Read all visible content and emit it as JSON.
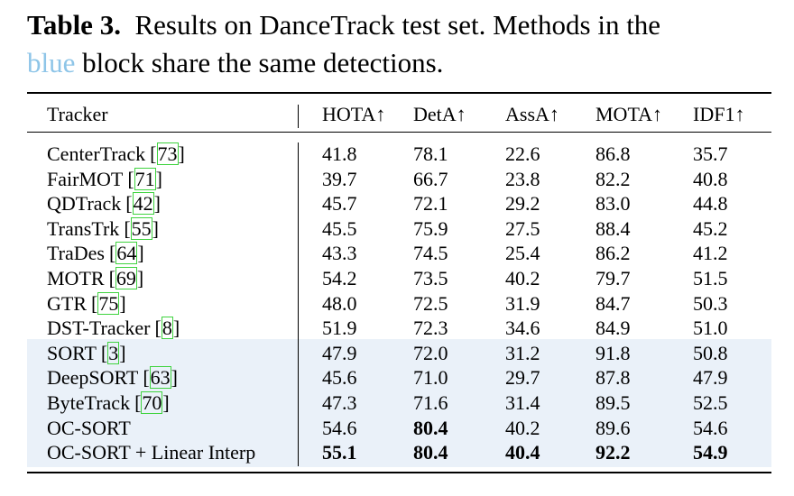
{
  "caption": {
    "label": "Table 3.",
    "text_before": "Results on DanceTrack test set.  Methods in the",
    "highlight": "blue",
    "text_after": "block share the same detections."
  },
  "table": {
    "headers": [
      "Tracker",
      "HOTA↑",
      "DetA↑",
      "AssA↑",
      "MOTA↑",
      "IDF1↑"
    ],
    "groups": [
      {
        "shaded": false,
        "rows": [
          {
            "name": "CenterTrack",
            "cite": {
              "open": "[",
              "number": "73",
              "close": "]"
            },
            "values": [
              "41.8",
              "78.1",
              "22.6",
              "86.8",
              "35.7"
            ],
            "bold": []
          },
          {
            "name": "FairMOT",
            "cite": {
              "open": "[",
              "number": "71",
              "close": "]"
            },
            "values": [
              "39.7",
              "66.7",
              "23.8",
              "82.2",
              "40.8"
            ],
            "bold": []
          },
          {
            "name": "QDTrack",
            "cite": {
              "open": "[",
              "number": "42",
              "close": "]"
            },
            "values": [
              "45.7",
              "72.1",
              "29.2",
              "83.0",
              "44.8"
            ],
            "bold": []
          },
          {
            "name": "TransTrk",
            "cite": {
              "open": "[",
              "number": "55",
              "close": "]"
            },
            "values": [
              "45.5",
              "75.9",
              "27.5",
              "88.4",
              "45.2"
            ],
            "bold": []
          },
          {
            "name": "TraDes",
            "cite": {
              "open": "[",
              "number": "64",
              "close": "]"
            },
            "values": [
              "43.3",
              "74.5",
              "25.4",
              "86.2",
              "41.2"
            ],
            "bold": []
          },
          {
            "name": "MOTR",
            "cite": {
              "open": "[",
              "number": "69",
              "close": "]"
            },
            "values": [
              "54.2",
              "73.5",
              "40.2",
              "79.7",
              "51.5"
            ],
            "bold": []
          },
          {
            "name": "GTR",
            "cite": {
              "open": "[",
              "number": "75",
              "close": "]"
            },
            "values": [
              "48.0",
              "72.5",
              "31.9",
              "84.7",
              "50.3"
            ],
            "bold": []
          },
          {
            "name": "DST-Tracker",
            "cite": {
              "open": "[",
              "number": "8",
              "close": "]"
            },
            "values": [
              "51.9",
              "72.3",
              "34.6",
              "84.9",
              "51.0"
            ],
            "bold": []
          }
        ]
      },
      {
        "shaded": true,
        "rows": [
          {
            "name": "SORT",
            "cite": {
              "open": "[",
              "number": "3",
              "close": "]"
            },
            "values": [
              "47.9",
              "72.0",
              "31.2",
              "91.8",
              "50.8"
            ],
            "bold": []
          },
          {
            "name": "DeepSORT",
            "cite": {
              "open": "[",
              "number": "63",
              "close": "]"
            },
            "values": [
              "45.6",
              "71.0",
              "29.7",
              "87.8",
              "47.9"
            ],
            "bold": []
          },
          {
            "name": "ByteTrack",
            "cite": {
              "open": "[",
              "number": "70",
              "close": "]"
            },
            "values": [
              "47.3",
              "71.6",
              "31.4",
              "89.5",
              "52.5"
            ],
            "bold": []
          },
          {
            "name": "OC-SORT",
            "values": [
              "54.6",
              "80.4",
              "40.2",
              "89.6",
              "54.6"
            ],
            "bold": [
              1
            ]
          },
          {
            "name": "OC-SORT + Linear Interp",
            "values": [
              "55.1",
              "80.4",
              "40.4",
              "92.2",
              "54.9"
            ],
            "bold": [
              0,
              1,
              2,
              3,
              4
            ]
          }
        ]
      }
    ]
  }
}
